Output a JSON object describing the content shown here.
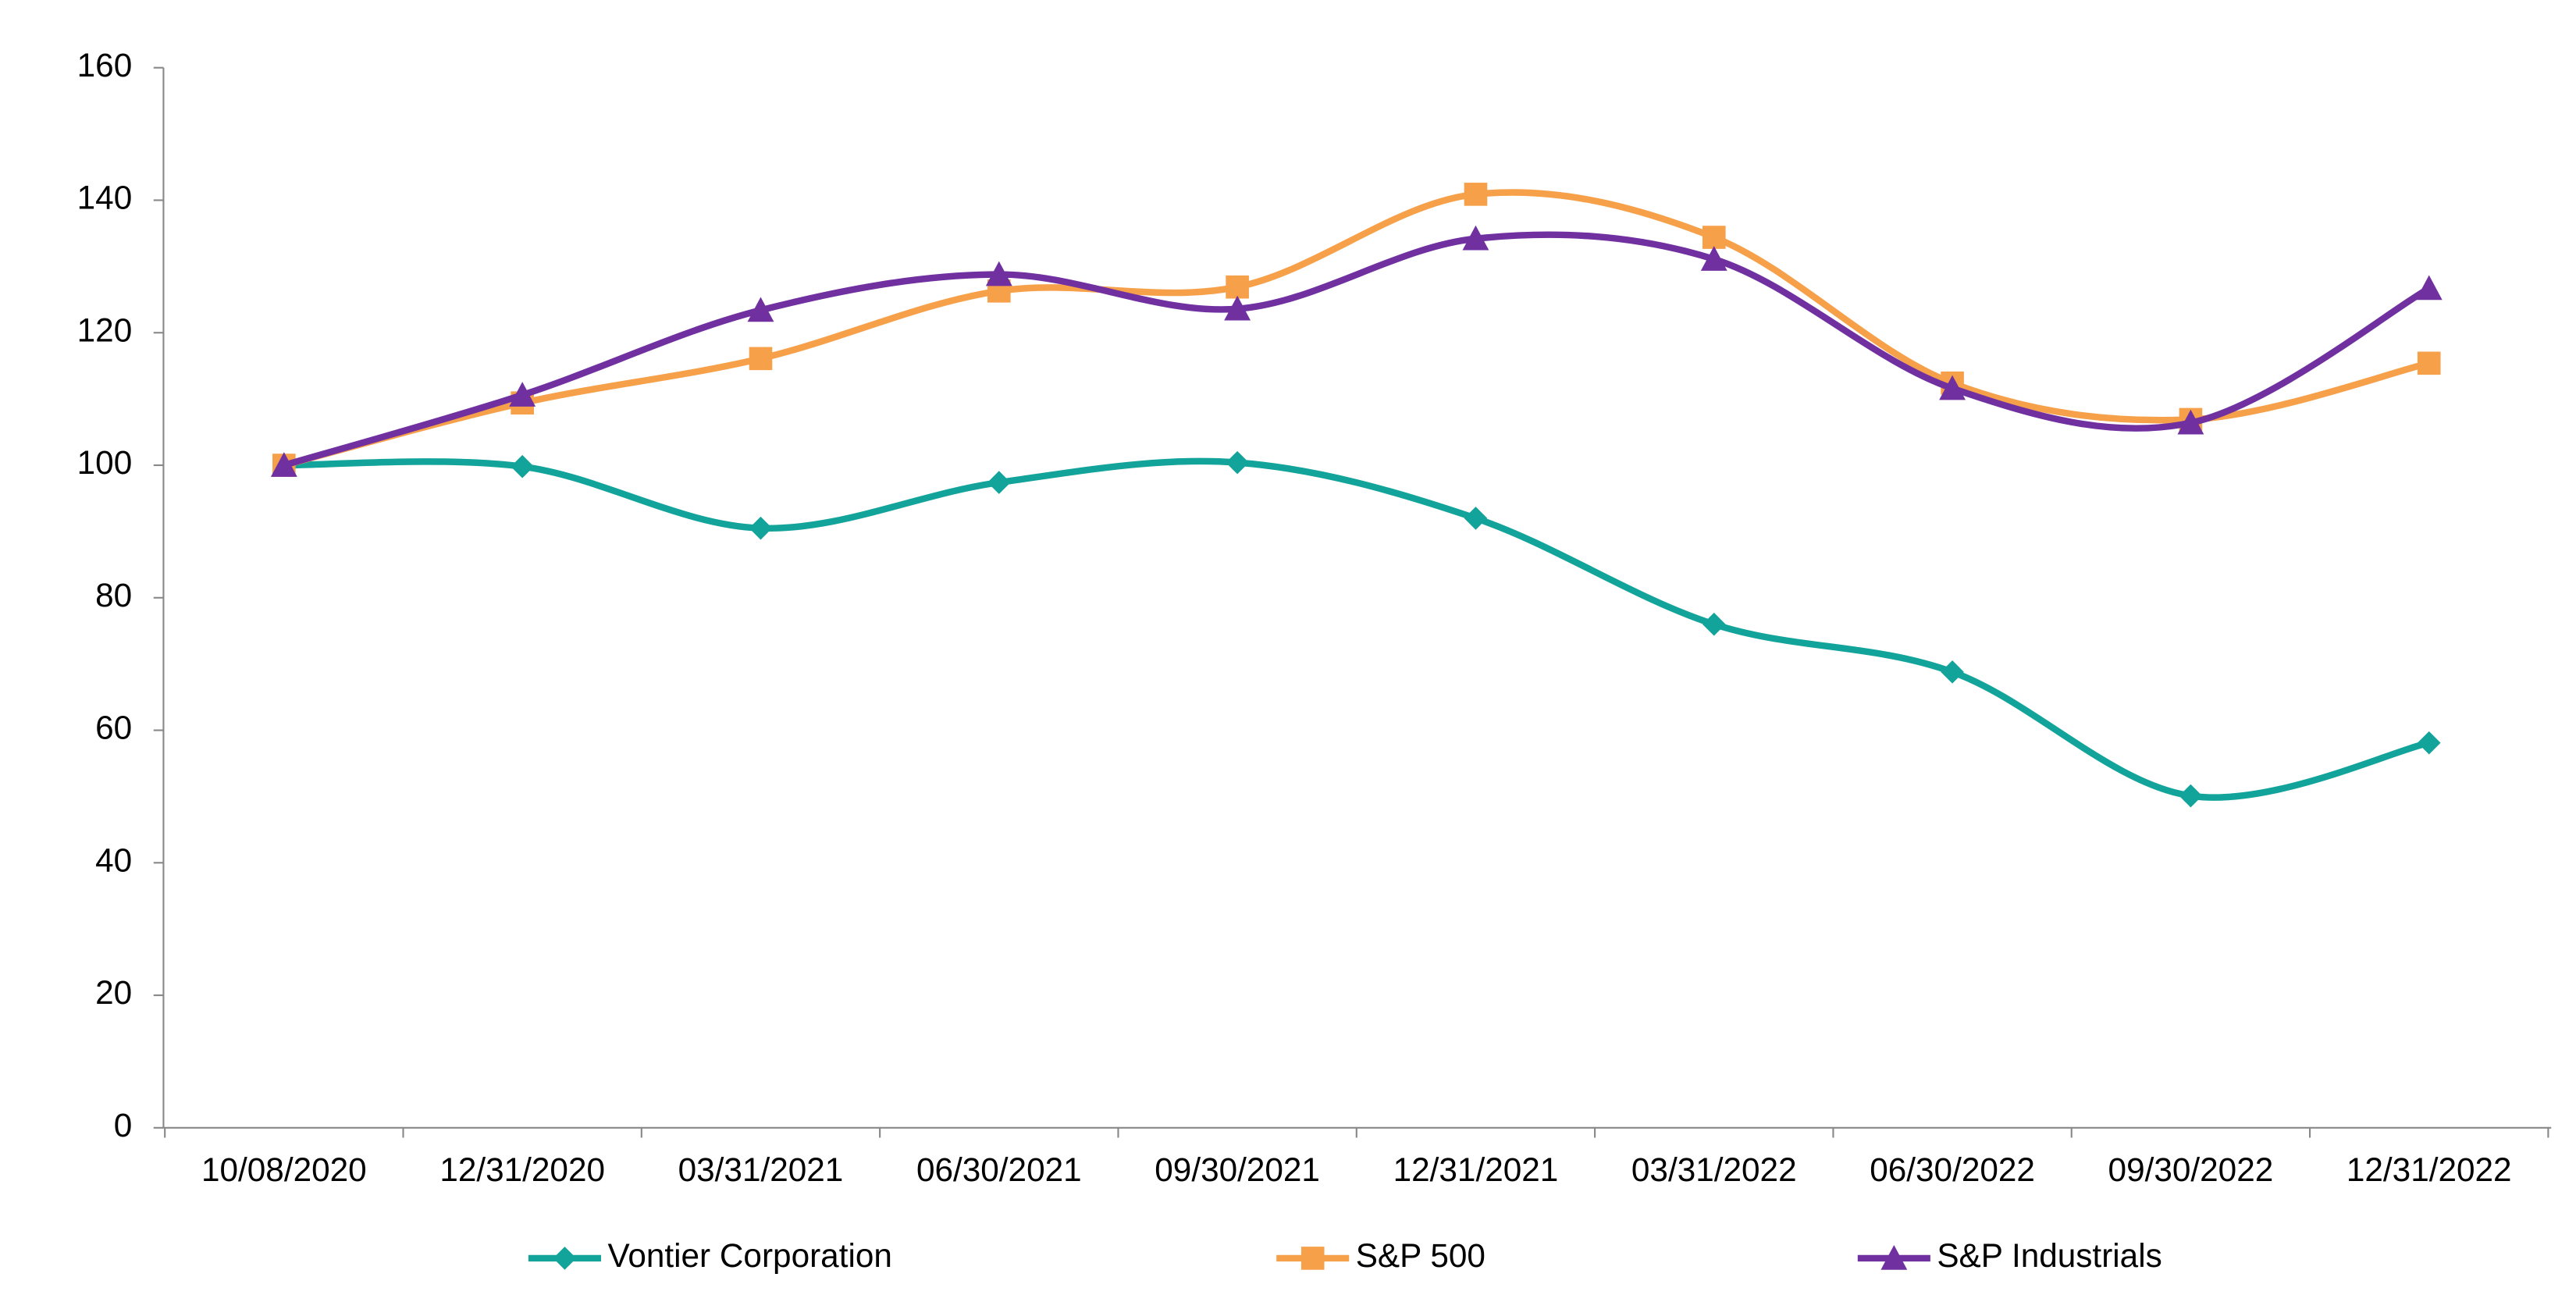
{
  "chart_data": {
    "type": "line",
    "smooth": true,
    "categories": [
      "10/08/2020",
      "12/31/2020",
      "03/31/2021",
      "06/30/2021",
      "09/30/2021",
      "12/31/2021",
      "03/31/2022",
      "06/30/2022",
      "09/30/2022",
      "12/31/2022"
    ],
    "series": [
      {
        "name": "Vontier Corporation",
        "color": "#12a39a",
        "marker": "diamond",
        "values": [
          100,
          99.8,
          90.5,
          97.4,
          100.4,
          92,
          76,
          68.8,
          50.1,
          58.1
        ]
      },
      {
        "name": "S&P 500",
        "color": "#f7a04a",
        "marker": "square",
        "values": [
          100,
          109.4,
          116.1,
          126.3,
          126.9,
          140.9,
          134.4,
          112.4,
          106.9,
          115.4
        ]
      },
      {
        "name": "S&P Industrials",
        "color": "#7030a0",
        "marker": "triangle",
        "values": [
          100,
          110.6,
          123.4,
          128.8,
          123.6,
          134.2,
          131.1,
          111.6,
          106.4,
          126.7
        ]
      }
    ],
    "ylim": [
      0,
      160
    ],
    "yticks": [
      0,
      20,
      40,
      60,
      80,
      100,
      120,
      140,
      160
    ],
    "legend": "bottom"
  }
}
